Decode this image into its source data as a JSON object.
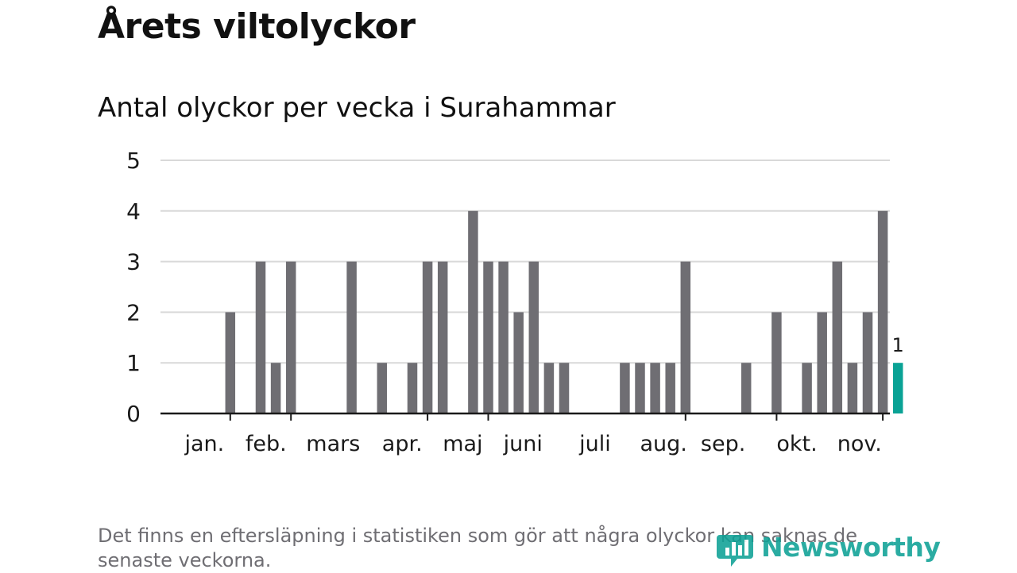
{
  "title": "Årets viltolyckor",
  "subtitle": "Antal olyckor per vecka i Surahammar",
  "footnote": "Det finns en eftersläpning i statistiken som gör att några olyckor kan saknas de senaste veckorna.",
  "brand": {
    "name": "Newsworthy",
    "color": "#0ea196"
  },
  "colors": {
    "bar": "#6f6e73",
    "highlight": "#0aa295",
    "grid": "#d9d9d9",
    "axis": "#1a1a1a"
  },
  "chart_data": {
    "type": "bar",
    "title": "Antal olyckor per vecka i Surahammar",
    "xlabel": "",
    "ylabel": "",
    "ylim": [
      0,
      5
    ],
    "yticks": [
      0,
      1,
      2,
      3,
      4,
      5
    ],
    "grid": true,
    "x": [
      1,
      2,
      3,
      4,
      5,
      6,
      7,
      8,
      9,
      10,
      11,
      12,
      13,
      14,
      15,
      16,
      17,
      18,
      19,
      20,
      21,
      22,
      23,
      24,
      25,
      26,
      27,
      28,
      29,
      30,
      31,
      32,
      33,
      34,
      35,
      36,
      37,
      38,
      39,
      40,
      41,
      42,
      43,
      44,
      45,
      46,
      47,
      48
    ],
    "values": [
      0,
      0,
      0,
      2,
      0,
      3,
      1,
      3,
      0,
      0,
      0,
      3,
      0,
      1,
      0,
      1,
      3,
      3,
      0,
      4,
      3,
      3,
      2,
      3,
      1,
      1,
      0,
      0,
      0,
      1,
      1,
      1,
      1,
      3,
      0,
      0,
      0,
      1,
      0,
      2,
      0,
      1,
      2,
      3,
      1,
      2,
      4,
      1
    ],
    "highlight_index": 47,
    "highlight_label": "1",
    "month_labels": [
      {
        "label": "jan.",
        "x": 1
      },
      {
        "label": "feb.",
        "x": 5
      },
      {
        "label": "mars",
        "x": 9
      },
      {
        "label": "apr.",
        "x": 14
      },
      {
        "label": "maj",
        "x": 18
      },
      {
        "label": "juni",
        "x": 22
      },
      {
        "label": "juli",
        "x": 27
      },
      {
        "label": "aug.",
        "x": 31
      },
      {
        "label": "sep.",
        "x": 35
      },
      {
        "label": "okt.",
        "x": 40
      },
      {
        "label": "nov.",
        "x": 44
      }
    ],
    "month_ticks": [
      4,
      8,
      17,
      21,
      34,
      40,
      47
    ]
  }
}
